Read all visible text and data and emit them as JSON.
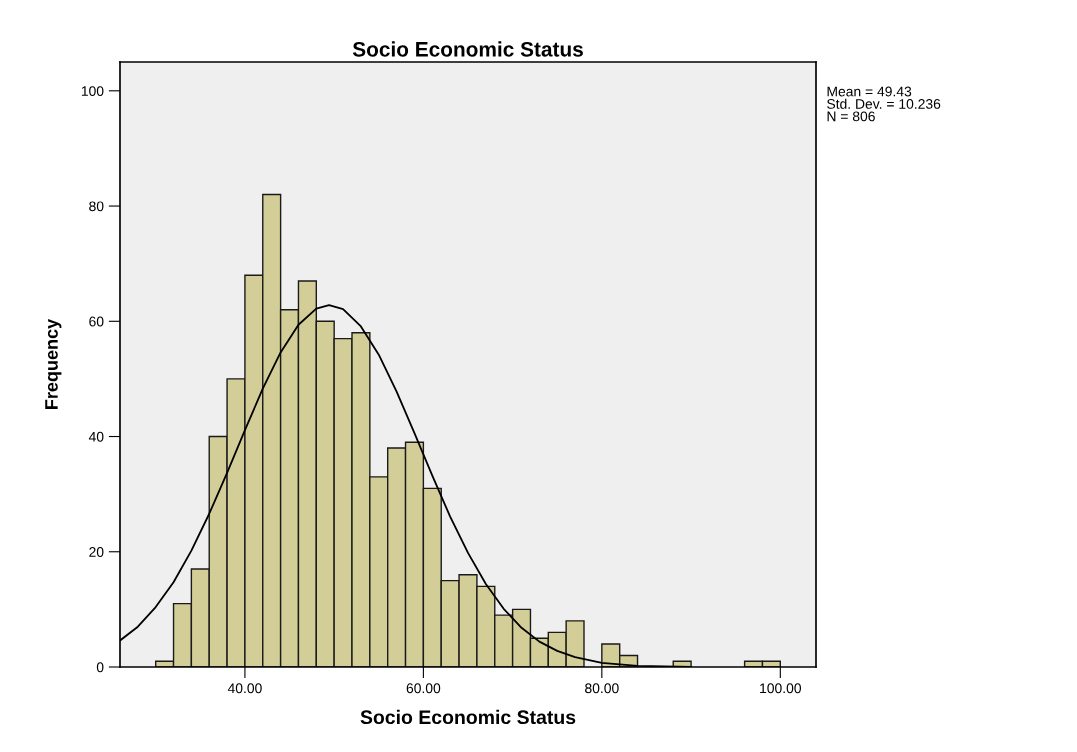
{
  "chart_data": {
    "type": "histogram",
    "title": "Socio Economic Status",
    "xlabel": "Socio Economic Status",
    "ylabel": "Frequency",
    "annotations": [
      "Mean = 49.43",
      "Std. Dev. = 10.236",
      "N = 806"
    ],
    "bins": [
      30,
      32,
      34,
      36,
      38,
      40,
      42,
      44,
      46,
      48,
      50,
      52,
      54,
      56,
      58,
      60,
      62,
      64,
      66,
      68,
      70,
      72,
      74,
      76,
      78,
      80,
      82,
      84,
      86,
      88,
      90,
      92,
      94,
      96,
      98,
      100
    ],
    "series": [
      {
        "color": "#d3ce98",
        "values": [
          1,
          11,
          17,
          40,
          50,
          68,
          82,
          62,
          67,
          60,
          57,
          58,
          33,
          38,
          39,
          31,
          15,
          16,
          14,
          9,
          10,
          5,
          6,
          8,
          0,
          4,
          2,
          0,
          0,
          1,
          0,
          0,
          0,
          1,
          1
        ]
      },
      {
        "type": "line",
        "color": "#000000",
        "x": [
          26,
          28,
          30,
          32,
          34,
          36,
          38,
          40,
          42,
          44,
          46,
          48,
          49.43,
          51,
          53,
          55,
          57,
          59,
          61,
          63,
          65,
          67,
          69,
          71,
          73,
          75,
          77,
          80,
          84,
          90
        ],
        "values": [
          4.6,
          7.0,
          10.4,
          14.7,
          20.2,
          26.6,
          33.7,
          41.1,
          48.3,
          54.6,
          59.4,
          62.2,
          62.8,
          62.1,
          59.1,
          54.2,
          47.8,
          40.6,
          33.2,
          26.1,
          19.8,
          14.4,
          10.1,
          6.8,
          4.4,
          2.8,
          1.7,
          0.7,
          0.2,
          0.0
        ]
      }
    ],
    "xlim": [
      26,
      104
    ],
    "ylim": [
      0,
      105
    ],
    "xticks": [
      {
        "value": 40,
        "label": "40.00"
      },
      {
        "value": 60,
        "label": "60.00"
      },
      {
        "value": 80,
        "label": "80.00"
      },
      {
        "value": 100,
        "label": "100.00"
      }
    ],
    "yticks": [
      0,
      20,
      40,
      60,
      80,
      100
    ],
    "grid": false
  }
}
